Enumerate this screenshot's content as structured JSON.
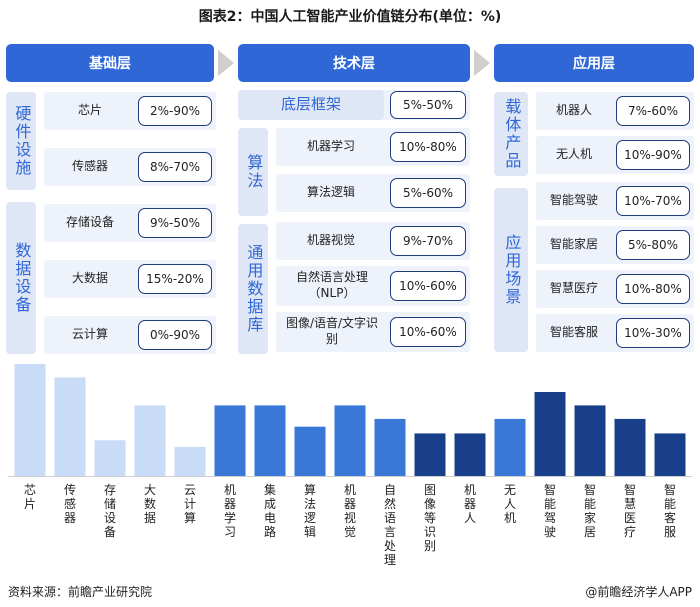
{
  "title": "图表2：中国人工智能产业价值链分布(单位：%)",
  "headers": [
    "基础层",
    "技术层",
    "应用层"
  ],
  "basic": {
    "groups": [
      {
        "label": "硬件设施",
        "items": [
          {
            "name": "芯片",
            "range": "2%-90%"
          },
          {
            "name": "传感器",
            "range": "8%-70%"
          }
        ]
      },
      {
        "label": "数据设备",
        "items": [
          {
            "name": "存储设备",
            "range": "9%-50%"
          },
          {
            "name": "大数据",
            "range": "15%-20%"
          },
          {
            "name": "云计算",
            "range": "0%-90%"
          }
        ]
      }
    ]
  },
  "tech": {
    "framework": {
      "label": "底层框架",
      "range": "5%-50%"
    },
    "groups": [
      {
        "label": "算法",
        "items": [
          {
            "name": "机器学习",
            "range": "10%-80%"
          },
          {
            "name": "算法逻辑",
            "range": "5%-60%"
          }
        ]
      },
      {
        "label": "通用数据库",
        "items": [
          {
            "name": "机器视觉",
            "range": "9%-70%"
          },
          {
            "name": "自然语言处理（NLP）",
            "range": "10%-60%"
          },
          {
            "name": "图像/语音/文字识别",
            "range": "10%-60%"
          }
        ]
      }
    ]
  },
  "app": {
    "groups": [
      {
        "label": "载体产品",
        "items": [
          {
            "name": "机器人",
            "range": "7%-60%"
          },
          {
            "name": "无人机",
            "range": "10%-90%"
          }
        ]
      },
      {
        "label": "应用场景",
        "items": [
          {
            "name": "智能驾驶",
            "range": "10%-70%"
          },
          {
            "name": "智能家居",
            "range": "5%-80%"
          },
          {
            "name": "智慧医疗",
            "range": "10%-80%"
          },
          {
            "name": "智能客服",
            "range": "10%-30%"
          }
        ]
      }
    ]
  },
  "chart_data": {
    "type": "bar",
    "categories": [
      "芯片",
      "传感器",
      "存储设备",
      "大数据",
      "云计算",
      "机器学习",
      "集成电路",
      "算法逻辑",
      "机器视觉",
      "自然语言处理",
      "图像等识别",
      "机器人",
      "无人机",
      "智能驾驶",
      "智能家居",
      "智慧医疗",
      "智能客服"
    ],
    "values": [
      100,
      88,
      32,
      63,
      26,
      63,
      63,
      44,
      63,
      51,
      38,
      38,
      51,
      75,
      63,
      51,
      38
    ],
    "colors": [
      "#c9dcf7",
      "#c9dcf7",
      "#c9dcf7",
      "#c9dcf7",
      "#c9dcf7",
      "#3a78d8",
      "#3a78d8",
      "#3a78d8",
      "#3a78d8",
      "#3a78d8",
      "#1a3f8a",
      "#1a3f8a",
      "#3a78d8",
      "#1a3f8a",
      "#1a3f8a",
      "#1a3f8a",
      "#1a3f8a"
    ],
    "ylim": [
      0,
      100
    ]
  },
  "footer": {
    "source": "资料来源：前瞻产业研究院",
    "brand": "@前瞻经济学人APP"
  }
}
